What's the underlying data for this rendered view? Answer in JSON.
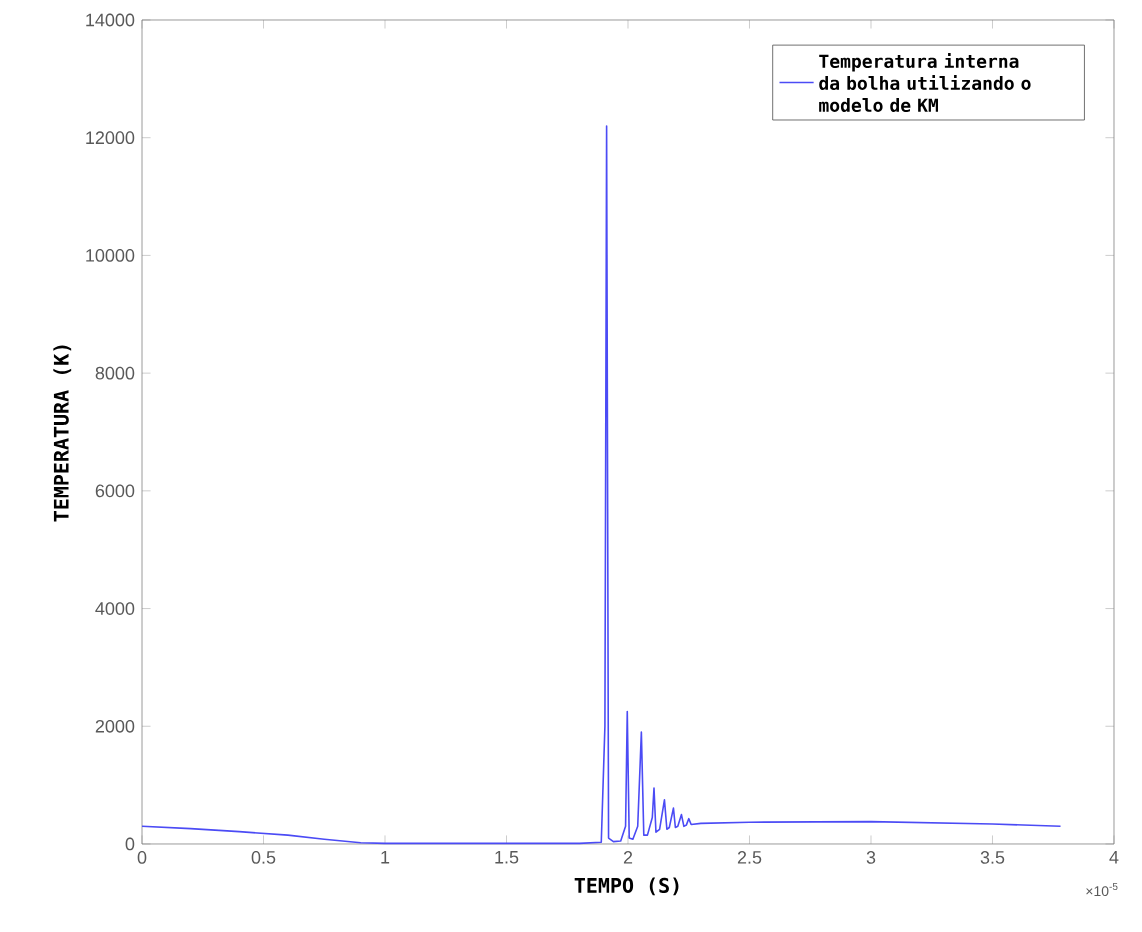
{
  "chart_data": {
    "type": "line",
    "xlabel": "TEMPO (S)",
    "ylabel": "TEMPERATURA (K)",
    "annotations": [
      "×10$^{-5}$"
    ],
    "xlim": [
      0,
      4
    ],
    "ylim": [
      0,
      14000
    ],
    "xticks": [
      0,
      0.5,
      1,
      1.5,
      2,
      2.5,
      3,
      3.5,
      4
    ],
    "yticks": [
      0,
      2000,
      4000,
      6000,
      8000,
      10000,
      12000,
      14000
    ],
    "legend": "top right",
    "series": [
      {
        "name": "Temperatura interna da bolha utilizando o modelo de KM",
        "color": "#4b4bf5",
        "x": [
          0,
          0.2,
          0.4,
          0.6,
          0.75,
          0.9,
          1.0,
          1.2,
          1.5,
          1.8,
          1.89,
          1.905,
          1.912,
          1.92,
          1.94,
          1.97,
          1.99,
          1.997,
          2.005,
          2.02,
          2.04,
          2.055,
          2.065,
          2.08,
          2.1,
          2.107,
          2.115,
          2.13,
          2.15,
          2.16,
          2.17,
          2.187,
          2.195,
          2.205,
          2.22,
          2.23,
          2.24,
          2.25,
          2.26,
          2.3,
          2.5,
          3.0,
          3.5,
          3.78
        ],
        "values": [
          300,
          260,
          210,
          150,
          80,
          20,
          10,
          10,
          10,
          10,
          30,
          2000,
          12200,
          100,
          40,
          50,
          300,
          2250,
          100,
          80,
          300,
          1900,
          150,
          150,
          450,
          950,
          200,
          250,
          750,
          250,
          280,
          610,
          280,
          300,
          500,
          300,
          320,
          430,
          330,
          350,
          370,
          380,
          340,
          300
        ]
      }
    ]
  }
}
